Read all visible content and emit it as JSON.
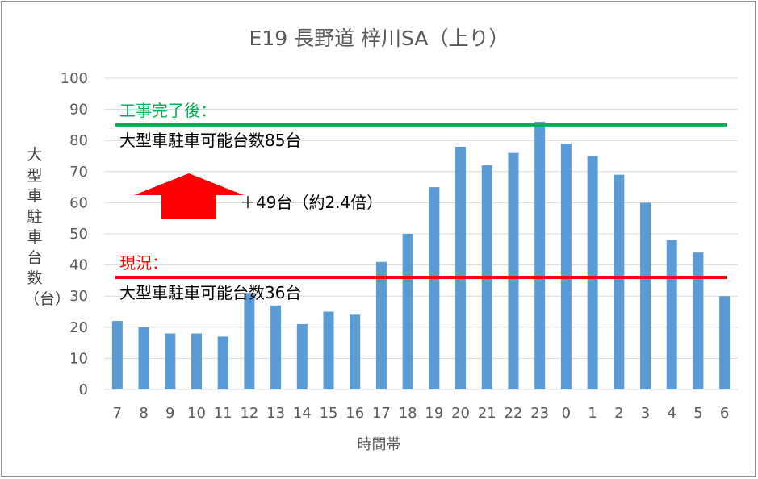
{
  "chart_data": {
    "type": "bar",
    "title": "E19 長野道 梓川SA（上り）",
    "xlabel": "時間帯",
    "ylabel": "大型車駐車台数（台）",
    "ylim": [
      0,
      100
    ],
    "yticks": [
      0,
      10,
      20,
      30,
      40,
      50,
      60,
      70,
      80,
      90,
      100
    ],
    "grid": true,
    "legend": "none",
    "categories": [
      "7",
      "8",
      "9",
      "10",
      "11",
      "12",
      "13",
      "14",
      "15",
      "16",
      "17",
      "18",
      "19",
      "20",
      "21",
      "22",
      "23",
      "0",
      "1",
      "2",
      "3",
      "4",
      "5",
      "6"
    ],
    "values": [
      22,
      20,
      18,
      18,
      17,
      31,
      27,
      21,
      25,
      24,
      41,
      50,
      65,
      78,
      72,
      76,
      86,
      79,
      75,
      69,
      60,
      48,
      44,
      30
    ],
    "bar_color": "#5b9bd5",
    "reference_lines": [
      {
        "value": 85,
        "color": "#00b050",
        "label_head": "工事完了後：",
        "label_body": "大型車駐車可能台数85台"
      },
      {
        "value": 36,
        "color": "#ff0000",
        "label_head": "現況：",
        "label_body": "大型車駐車可能台数36台"
      }
    ],
    "annotations": {
      "increase_text": "＋49台（約2.4倍）",
      "arrow_color": "#ff0000"
    }
  }
}
